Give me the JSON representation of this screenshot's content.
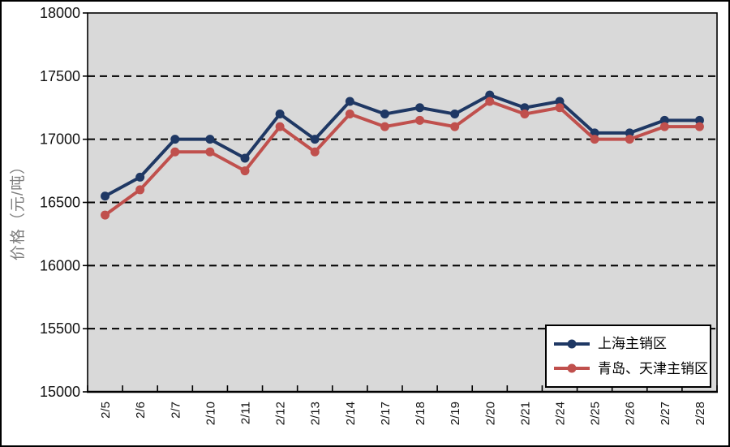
{
  "chart_data": {
    "type": "line",
    "title": "",
    "xlabel": "",
    "ylabel": "价格（元/吨）",
    "categories": [
      "2/5",
      "2/6",
      "2/7",
      "2/10",
      "2/11",
      "2/12",
      "2/13",
      "2/14",
      "2/17",
      "2/18",
      "2/19",
      "2/20",
      "2/21",
      "2/24",
      "2/25",
      "2/26",
      "2/27",
      "2/28"
    ],
    "series": [
      {
        "name": "上海主销区",
        "color": "#1f3864",
        "values": [
          16550,
          16700,
          17000,
          17000,
          16850,
          17200,
          17000,
          17300,
          17200,
          17250,
          17200,
          17350,
          17250,
          17300,
          17050,
          17050,
          17150,
          17150
        ]
      },
      {
        "name": "青岛、天津主销区",
        "color": "#c0504d",
        "values": [
          16400,
          16600,
          16900,
          16900,
          16750,
          17100,
          16900,
          17200,
          17100,
          17150,
          17100,
          17300,
          17200,
          17250,
          17000,
          17000,
          17100,
          17100
        ]
      }
    ],
    "ylim": [
      15000,
      18000
    ],
    "y_ticks": [
      15000,
      15500,
      16000,
      16500,
      17000,
      17500,
      18000
    ],
    "grid": "horizontal-dashed",
    "legend_position": "inside-bottom-right",
    "marker": "circle",
    "colors": {
      "plot_background": "#d9d9d9",
      "outer_background": "#ffffff",
      "gridline": "#000000",
      "axis": "#000000",
      "tick_label": "#111111",
      "ylabel_color": "#7f7f7f"
    }
  }
}
